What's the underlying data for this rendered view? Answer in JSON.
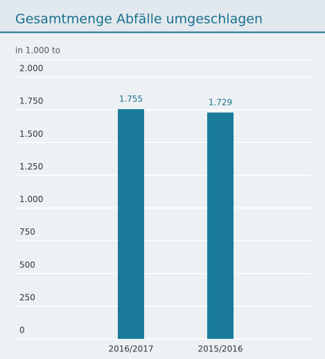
{
  "chart_data": {
    "type": "bar",
    "title": "Gesamtmenge Abfälle umgeschlagen",
    "y_label": "in 1.000 to",
    "categories": [
      "2016/2017",
      "2015/2016"
    ],
    "values": [
      1755,
      1729
    ],
    "value_labels": [
      "1.755",
      "1.729"
    ],
    "color": "#1a7b9b",
    "ylim": [
      0,
      2000
    ],
    "yticks": [
      0,
      250,
      500,
      {
        "value": 750,
        "label": "750"
      },
      {
        "value": 1000,
        "label": "1.000"
      },
      {
        "value": 1250,
        "label": "1.250"
      },
      {
        "value": 1500,
        "label": "1.500"
      },
      {
        "value": 1750,
        "label": "1.750"
      },
      {
        "value": 2000,
        "label": "2.000"
      }
    ],
    "grid": true
  }
}
